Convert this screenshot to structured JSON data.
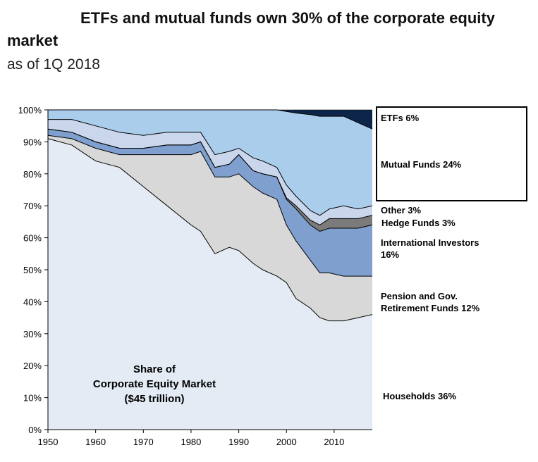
{
  "title_main": "ETFs and mutual funds own 30% of the corporate equity",
  "title_cont": "market",
  "subtitle": "as of 1Q 2018",
  "colors": {
    "households": "#e4ebf5",
    "pension": "#d8d8d8",
    "international": "#7f9fcf",
    "hedge": "#7b7b7b",
    "other": "#c9d6ec",
    "mutual": "#a9cdeb",
    "etf": "#0d2548"
  },
  "chart_data": {
    "type": "area",
    "stacked": true,
    "xlim": [
      1950,
      2018
    ],
    "ylim": [
      0,
      100
    ],
    "x_ticks": [
      "1950",
      "1960",
      "1970",
      "1980",
      "1990",
      "2000",
      "2010"
    ],
    "y_ticks": [
      "0%",
      "10%",
      "20%",
      "30%",
      "40%",
      "50%",
      "60%",
      "70%",
      "80%",
      "90%",
      "100%"
    ],
    "x": [
      1950,
      1955,
      1960,
      1965,
      1970,
      1975,
      1980,
      1982,
      1985,
      1988,
      1990,
      1993,
      1995,
      1998,
      2000,
      2002,
      2005,
      2007,
      2009,
      2012,
      2015,
      2018
    ],
    "series": [
      {
        "name": "Households 36%",
        "color_key": "households",
        "values": [
          91,
          89,
          84,
          82,
          76,
          70,
          64,
          62,
          55,
          57,
          56,
          52,
          50,
          48,
          46,
          41,
          38,
          35,
          34,
          34,
          35,
          36
        ]
      },
      {
        "name": "Pension and Gov. Retirement Funds 12%",
        "color_key": "pension",
        "values": [
          1,
          2,
          4,
          4,
          10,
          16,
          22,
          25,
          24,
          22,
          24,
          24,
          24,
          24,
          18,
          18,
          15,
          14,
          15,
          14,
          13,
          12
        ]
      },
      {
        "name": "International Investors 16%",
        "color_key": "international",
        "values": [
          2,
          2,
          2,
          2,
          2,
          3,
          3,
          3,
          3,
          4,
          6,
          5,
          6,
          7,
          8,
          10,
          11,
          13,
          14,
          15,
          15,
          16
        ]
      },
      {
        "name": "Hedge Funds 3%",
        "color_key": "hedge",
        "values": [
          0,
          0,
          0,
          0,
          0,
          0,
          0,
          0,
          0,
          0,
          0,
          0,
          0,
          0,
          0.5,
          1,
          1.5,
          2,
          3,
          3,
          3,
          3
        ]
      },
      {
        "name": "Other 3%",
        "color_key": "other",
        "values": [
          3,
          4,
          5,
          5,
          4,
          4,
          4,
          3,
          4,
          4,
          2,
          4,
          4,
          3,
          4,
          3,
          3,
          3,
          3,
          4,
          3,
          3
        ]
      },
      {
        "name": "Mutual Funds 24%",
        "color_key": "mutual",
        "values": [
          3,
          3,
          5,
          7,
          8,
          7,
          7,
          7,
          14,
          13,
          12,
          15,
          16,
          18,
          23,
          26,
          30,
          31,
          29,
          28,
          27,
          24
        ]
      },
      {
        "name": "ETFs 6%",
        "color_key": "etf",
        "values": [
          0,
          0,
          0,
          0,
          0,
          0,
          0,
          0,
          0,
          0,
          0,
          0,
          0,
          0,
          0.5,
          1,
          1.5,
          2,
          2,
          2,
          4,
          6
        ]
      }
    ],
    "annotations": [
      {
        "text": "Share of"
      },
      {
        "text": "Corporate Equity Market"
      },
      {
        "text": "($45 trillion)"
      }
    ],
    "legend_position": "right",
    "grid": false
  },
  "right_labels": [
    {
      "id": "etf",
      "lines": [
        "ETFs 6%"
      ]
    },
    {
      "id": "mutual",
      "lines": [
        "Mutual Funds 24%"
      ]
    },
    {
      "id": "other",
      "lines": [
        "Other 3%"
      ]
    },
    {
      "id": "hedge",
      "lines": [
        "Hedge Funds 3%"
      ]
    },
    {
      "id": "international",
      "lines": [
        "International Investors",
        "16%"
      ]
    },
    {
      "id": "pension",
      "lines": [
        "Pension and Gov.",
        "Retirement Funds 12%"
      ]
    },
    {
      "id": "households",
      "lines": [
        "Households 36%"
      ]
    }
  ]
}
